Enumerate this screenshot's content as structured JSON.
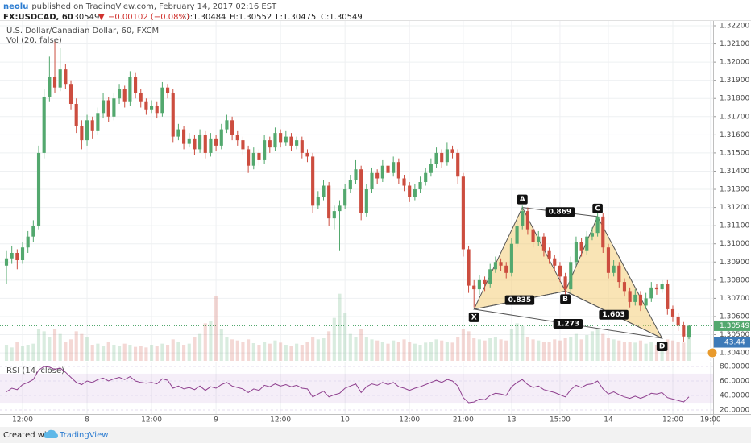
{
  "header": {
    "author": "neolu",
    "published": "published on TradingView.com, February 14, 2017 02:16 EST",
    "symbol": "FX:USDCAD, 60",
    "last": "1.30549",
    "change": "−0.00102 (−0.08%)",
    "ohlc": [
      "O:1.30484",
      "H:1.30552",
      "L:1.30475",
      "C:1.30549"
    ]
  },
  "footer": {
    "created": "Created with",
    "brand": "TradingView"
  },
  "chart_data": {
    "type": "candlestick",
    "title": "U.S. Dollar/Canadian Dollar, 60, FXCM",
    "subtitle": "Vol (20, false)",
    "xlim": [
      -1.2,
      131.5
    ],
    "xticks": [
      {
        "value": 3,
        "label": "12:00"
      },
      {
        "value": 15,
        "label": "8"
      },
      {
        "value": 27,
        "label": "12:00"
      },
      {
        "value": 39,
        "label": "9"
      },
      {
        "value": 51,
        "label": "12:00"
      },
      {
        "value": 63,
        "label": "10"
      },
      {
        "value": 75,
        "label": "12:00"
      },
      {
        "value": 85,
        "label": "21:00"
      },
      {
        "value": 94,
        "label": "13"
      },
      {
        "value": 103,
        "label": "15:00"
      },
      {
        "value": 112,
        "label": "14"
      },
      {
        "value": 124,
        "label": "12:00"
      },
      {
        "value": 131,
        "label": "19:00"
      }
    ],
    "ylim": [
      1.30356,
      1.32231
    ],
    "yticks": [
      {
        "value": 1.304,
        "label": "1.30400"
      },
      {
        "value": 1.305,
        "label": "1.30500"
      },
      {
        "value": 1.306,
        "label": "1.30600"
      },
      {
        "value": 1.307,
        "label": "1.30700"
      },
      {
        "value": 1.308,
        "label": "1.30800"
      },
      {
        "value": 1.309,
        "label": "1.30900"
      },
      {
        "value": 1.31,
        "label": "1.31000"
      },
      {
        "value": 1.311,
        "label": "1.31100"
      },
      {
        "value": 1.312,
        "label": "1.31200"
      },
      {
        "value": 1.313,
        "label": "1.31300"
      },
      {
        "value": 1.314,
        "label": "1.31400"
      },
      {
        "value": 1.315,
        "label": "1.31500"
      },
      {
        "value": 1.316,
        "label": "1.31600"
      },
      {
        "value": 1.317,
        "label": "1.31700"
      },
      {
        "value": 1.318,
        "label": "1.31800"
      },
      {
        "value": 1.319,
        "label": "1.31900"
      },
      {
        "value": 1.32,
        "label": "1.32000"
      },
      {
        "value": 1.321,
        "label": "1.32100"
      },
      {
        "value": 1.322,
        "label": "1.32200"
      }
    ],
    "grid": true,
    "up_color": "#53a86e",
    "down_color": "#cc4d3f",
    "candles": [
      [
        1.3088,
        1.3096,
        1.3078,
        1.3092
      ],
      [
        1.3092,
        1.3099,
        1.3089,
        1.3095
      ],
      [
        1.3095,
        1.3097,
        1.3086,
        1.3091
      ],
      [
        1.3091,
        1.3101,
        1.3089,
        1.3098
      ],
      [
        1.3098,
        1.3107,
        1.3095,
        1.3104
      ],
      [
        1.3104,
        1.3113,
        1.3101,
        1.311
      ],
      [
        1.311,
        1.3154,
        1.3108,
        1.315
      ],
      [
        1.315,
        1.3185,
        1.3147,
        1.3181
      ],
      [
        1.3181,
        1.3203,
        1.3178,
        1.3192
      ],
      [
        1.3192,
        1.3212,
        1.3183,
        1.3186
      ],
      [
        1.3186,
        1.3208,
        1.3184,
        1.3196
      ],
      [
        1.3196,
        1.3199,
        1.3185,
        1.3188
      ],
      [
        1.3188,
        1.319,
        1.3174,
        1.3177
      ],
      [
        1.3177,
        1.318,
        1.3161,
        1.3165
      ],
      [
        1.3165,
        1.3168,
        1.3152,
        1.3157
      ],
      [
        1.3157,
        1.3171,
        1.3154,
        1.3168
      ],
      [
        1.3168,
        1.317,
        1.3158,
        1.3162
      ],
      [
        1.3162,
        1.3175,
        1.316,
        1.3172
      ],
      [
        1.3172,
        1.3183,
        1.3169,
        1.3179
      ],
      [
        1.3179,
        1.3181,
        1.3167,
        1.317
      ],
      [
        1.317,
        1.3183,
        1.3168,
        1.318
      ],
      [
        1.318,
        1.3188,
        1.3177,
        1.3185
      ],
      [
        1.3185,
        1.3187,
        1.3175,
        1.3178
      ],
      [
        1.3178,
        1.3195,
        1.3176,
        1.3192
      ],
      [
        1.3192,
        1.3194,
        1.318,
        1.3183
      ],
      [
        1.3183,
        1.3185,
        1.3175,
        1.3178
      ],
      [
        1.3178,
        1.318,
        1.3171,
        1.3174
      ],
      [
        1.3174,
        1.3179,
        1.3172,
        1.3176
      ],
      [
        1.3176,
        1.3178,
        1.3169,
        1.3172
      ],
      [
        1.3172,
        1.3189,
        1.317,
        1.3186
      ],
      [
        1.3186,
        1.3188,
        1.318,
        1.3183
      ],
      [
        1.3183,
        1.3185,
        1.3156,
        1.3159
      ],
      [
        1.3159,
        1.3166,
        1.3157,
        1.3163
      ],
      [
        1.3163,
        1.3165,
        1.3152,
        1.3155
      ],
      [
        1.3155,
        1.3161,
        1.3153,
        1.3158
      ],
      [
        1.3158,
        1.316,
        1.3149,
        1.3152
      ],
      [
        1.3152,
        1.3163,
        1.315,
        1.316
      ],
      [
        1.316,
        1.3162,
        1.3147,
        1.315
      ],
      [
        1.315,
        1.3161,
        1.3148,
        1.3158
      ],
      [
        1.3158,
        1.316,
        1.3151,
        1.3154
      ],
      [
        1.3154,
        1.3166,
        1.3152,
        1.3163
      ],
      [
        1.3163,
        1.3171,
        1.3161,
        1.3168
      ],
      [
        1.3168,
        1.317,
        1.3157,
        1.316
      ],
      [
        1.316,
        1.3162,
        1.3154,
        1.3157
      ],
      [
        1.3157,
        1.3159,
        1.3149,
        1.3152
      ],
      [
        1.3152,
        1.3154,
        1.3139,
        1.3143
      ],
      [
        1.3143,
        1.3153,
        1.3141,
        1.315
      ],
      [
        1.315,
        1.3152,
        1.3143,
        1.3146
      ],
      [
        1.3146,
        1.316,
        1.3144,
        1.3157
      ],
      [
        1.3157,
        1.3159,
        1.315,
        1.3153
      ],
      [
        1.3153,
        1.3164,
        1.3151,
        1.3161
      ],
      [
        1.3161,
        1.3163,
        1.3153,
        1.3156
      ],
      [
        1.3156,
        1.3162,
        1.3154,
        1.3159
      ],
      [
        1.3159,
        1.3161,
        1.3151,
        1.3154
      ],
      [
        1.3154,
        1.3159,
        1.3152,
        1.3157
      ],
      [
        1.3157,
        1.3159,
        1.3147,
        1.315
      ],
      [
        1.315,
        1.3152,
        1.3145,
        1.3148
      ],
      [
        1.3148,
        1.315,
        1.3117,
        1.3121
      ],
      [
        1.3121,
        1.3129,
        1.3119,
        1.3126
      ],
      [
        1.3126,
        1.3135,
        1.3124,
        1.3132
      ],
      [
        1.3132,
        1.3134,
        1.311,
        1.3114
      ],
      [
        1.3114,
        1.3121,
        1.3108,
        1.3118
      ],
      [
        1.3118,
        1.3124,
        1.3096,
        1.3121
      ],
      [
        1.3121,
        1.3133,
        1.3119,
        1.313
      ],
      [
        1.313,
        1.3138,
        1.3128,
        1.3135
      ],
      [
        1.3135,
        1.3146,
        1.3133,
        1.3141
      ],
      [
        1.3141,
        1.3143,
        1.3113,
        1.3117
      ],
      [
        1.3117,
        1.3133,
        1.3115,
        1.313
      ],
      [
        1.313,
        1.3142,
        1.3128,
        1.3139
      ],
      [
        1.3139,
        1.3141,
        1.3133,
        1.3136
      ],
      [
        1.3136,
        1.3146,
        1.3134,
        1.3143
      ],
      [
        1.3143,
        1.3145,
        1.3136,
        1.3139
      ],
      [
        1.3139,
        1.3148,
        1.3137,
        1.3145
      ],
      [
        1.3145,
        1.3147,
        1.3133,
        1.3136
      ],
      [
        1.3136,
        1.3138,
        1.3129,
        1.3132
      ],
      [
        1.3132,
        1.3134,
        1.3123,
        1.3126
      ],
      [
        1.3126,
        1.3133,
        1.3124,
        1.313
      ],
      [
        1.313,
        1.3137,
        1.3128,
        1.3134
      ],
      [
        1.3134,
        1.3142,
        1.3132,
        1.3139
      ],
      [
        1.3139,
        1.3147,
        1.3137,
        1.3144
      ],
      [
        1.3144,
        1.3153,
        1.3142,
        1.315
      ],
      [
        1.315,
        1.3152,
        1.3142,
        1.3145
      ],
      [
        1.3145,
        1.3156,
        1.3143,
        1.3152
      ],
      [
        1.3152,
        1.3154,
        1.3147,
        1.315
      ],
      [
        1.315,
        1.3152,
        1.3133,
        1.3137
      ],
      [
        1.3137,
        1.3139,
        1.3093,
        1.3097
      ],
      [
        1.3097,
        1.3099,
        1.3073,
        1.3077
      ],
      [
        1.3077,
        1.308,
        1.3065,
        1.3075
      ],
      [
        1.3075,
        1.3083,
        1.3072,
        1.308
      ],
      [
        1.308,
        1.3082,
        1.3074,
        1.3078
      ],
      [
        1.3078,
        1.3089,
        1.3076,
        1.3086
      ],
      [
        1.3086,
        1.3093,
        1.3084,
        1.309
      ],
      [
        1.309,
        1.3092,
        1.3085,
        1.3088
      ],
      [
        1.3088,
        1.309,
        1.3081,
        1.3084
      ],
      [
        1.3084,
        1.3103,
        1.3082,
        1.31
      ],
      [
        1.31,
        1.3113,
        1.3098,
        1.311
      ],
      [
        1.311,
        1.3121,
        1.3108,
        1.3118
      ],
      [
        1.3118,
        1.312,
        1.3105,
        1.3108
      ],
      [
        1.3108,
        1.311,
        1.3098,
        1.3101
      ],
      [
        1.3101,
        1.3107,
        1.3099,
        1.3104
      ],
      [
        1.3104,
        1.3106,
        1.3093,
        1.3096
      ],
      [
        1.3096,
        1.3098,
        1.3089,
        1.3092
      ],
      [
        1.3092,
        1.3094,
        1.3085,
        1.3088
      ],
      [
        1.3088,
        1.309,
        1.3079,
        1.3082
      ],
      [
        1.3082,
        1.3084,
        1.3072,
        1.3075
      ],
      [
        1.3075,
        1.3093,
        1.3073,
        1.309
      ],
      [
        1.309,
        1.3104,
        1.3088,
        1.3101
      ],
      [
        1.3101,
        1.3103,
        1.3093,
        1.3096
      ],
      [
        1.3096,
        1.3107,
        1.3094,
        1.3104
      ],
      [
        1.3104,
        1.3109,
        1.3102,
        1.3106
      ],
      [
        1.3106,
        1.3118,
        1.3104,
        1.3115
      ],
      [
        1.3115,
        1.3117,
        1.3095,
        1.3098
      ],
      [
        1.3098,
        1.31,
        1.3081,
        1.3084
      ],
      [
        1.3084,
        1.3091,
        1.3082,
        1.3088
      ],
      [
        1.3088,
        1.309,
        1.3076,
        1.3079
      ],
      [
        1.3079,
        1.3081,
        1.3071,
        1.3074
      ],
      [
        1.3074,
        1.3076,
        1.3065,
        1.3068
      ],
      [
        1.3068,
        1.3075,
        1.3066,
        1.3072
      ],
      [
        1.3072,
        1.3074,
        1.3063,
        1.3066
      ],
      [
        1.3066,
        1.3073,
        1.3064,
        1.307
      ],
      [
        1.307,
        1.3079,
        1.3068,
        1.3076
      ],
      [
        1.3076,
        1.3078,
        1.3072,
        1.3075
      ],
      [
        1.3075,
        1.308,
        1.3073,
        1.3078
      ],
      [
        1.3078,
        1.308,
        1.3061,
        1.3064
      ],
      [
        1.3064,
        1.3066,
        1.3057,
        1.306
      ],
      [
        1.306,
        1.3062,
        1.3052,
        1.3055
      ],
      [
        1.3055,
        1.3057,
        1.3046,
        1.3049
      ],
      [
        1.30484,
        1.30552,
        1.30475,
        1.30549
      ]
    ],
    "volume": [
      30,
      25,
      35,
      28,
      30,
      32,
      60,
      55,
      45,
      60,
      50,
      35,
      40,
      55,
      50,
      45,
      30,
      32,
      28,
      35,
      30,
      28,
      32,
      30,
      26,
      28,
      25,
      30,
      27,
      32,
      30,
      40,
      35,
      30,
      32,
      45,
      50,
      70,
      75,
      120,
      60,
      45,
      40,
      38,
      35,
      40,
      33,
      30,
      35,
      32,
      38,
      34,
      30,
      28,
      32,
      30,
      35,
      45,
      40,
      42,
      55,
      80,
      125,
      90,
      50,
      45,
      60,
      45,
      40,
      38,
      35,
      32,
      38,
      36,
      40,
      35,
      32,
      30,
      34,
      36,
      40,
      38,
      35,
      34,
      45,
      60,
      55,
      42,
      40,
      38,
      42,
      45,
      40,
      38,
      60,
      70,
      65,
      45,
      40,
      38,
      36,
      35,
      40,
      38,
      42,
      45,
      50,
      40,
      48,
      55,
      60,
      50,
      42,
      40,
      38,
      35,
      36,
      34,
      38,
      32,
      35,
      30,
      33,
      40,
      38,
      36,
      34,
      43.44
    ],
    "vlim": [
      0,
      150
    ],
    "volume_tag_color": "#3d7ab8",
    "rsi": {
      "title": "RSI (14, close)",
      "color": "#8e3f8e",
      "band": [
        30,
        70
      ],
      "ylim": [
        14.5,
        85.5
      ],
      "yticks": [
        {
          "value": 20,
          "label": "20.0000"
        },
        {
          "value": 40,
          "label": "40.0000"
        },
        {
          "value": 60,
          "label": "60.0000"
        },
        {
          "value": 80,
          "label": "80.0000"
        }
      ],
      "values": [
        45,
        50,
        48,
        55,
        58,
        62,
        75,
        80,
        79,
        76,
        78,
        72,
        65,
        58,
        55,
        60,
        58,
        62,
        64,
        60,
        63,
        65,
        62,
        66,
        60,
        58,
        57,
        58,
        56,
        63,
        61,
        50,
        53,
        49,
        51,
        48,
        53,
        47,
        52,
        50,
        55,
        58,
        53,
        51,
        49,
        44,
        49,
        47,
        54,
        52,
        56,
        53,
        55,
        52,
        54,
        50,
        49,
        38,
        42,
        46,
        38,
        41,
        43,
        50,
        53,
        56,
        44,
        52,
        56,
        54,
        58,
        55,
        58,
        52,
        50,
        47,
        50,
        52,
        55,
        58,
        61,
        58,
        62,
        60,
        53,
        37,
        30,
        31,
        35,
        34,
        40,
        43,
        42,
        40,
        52,
        58,
        62,
        55,
        51,
        53,
        48,
        46,
        44,
        41,
        38,
        48,
        54,
        51,
        55,
        56,
        60,
        49,
        42,
        45,
        41,
        38,
        36,
        39,
        36,
        39,
        43,
        42,
        44,
        37,
        35,
        33,
        31,
        38
      ]
    },
    "pattern": {
      "color": "#f2c45a",
      "points": [
        {
          "label": "X",
          "index": 87,
          "price": 1.3064
        },
        {
          "label": "A",
          "index": 96,
          "price": 1.312
        },
        {
          "label": "B",
          "index": 104,
          "price": 1.3074
        },
        {
          "label": "C",
          "index": 110,
          "price": 1.3115
        },
        {
          "label": "D",
          "index": 122,
          "price": 1.3048
        }
      ],
      "ratios": [
        0.869,
        0.835,
        1.603,
        1.273
      ]
    }
  }
}
